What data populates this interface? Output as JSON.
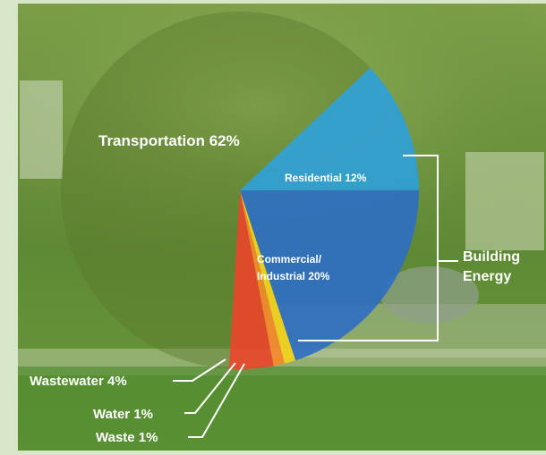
{
  "chart_data": {
    "type": "pie",
    "slices": [
      {
        "label": "Transportation",
        "value": 62,
        "display": "Transportation 62%",
        "color": "#5b7a2c"
      },
      {
        "label": "Residential",
        "value": 12,
        "display": "Residential 12%",
        "color": "#2f9fd6"
      },
      {
        "label": "Commercial/ Industrial",
        "value": 20,
        "display_lines": [
          "Commercial/",
          "Industrial 20%"
        ],
        "color": "#2f6fc2"
      },
      {
        "label": "Wastewater",
        "value": 4,
        "display": "Wastewater 4%",
        "color": "#e8452a"
      },
      {
        "label": "Water",
        "value": 1,
        "display": "Water 1%",
        "color": "#f58a2a"
      },
      {
        "label": "Waste",
        "value": 1,
        "display": "Waste 1%",
        "color": "#f2d21c"
      }
    ],
    "group_label": {
      "lines": [
        "Building",
        "Energy"
      ],
      "members": [
        "Residential",
        "Commercial/ Industrial"
      ]
    }
  }
}
